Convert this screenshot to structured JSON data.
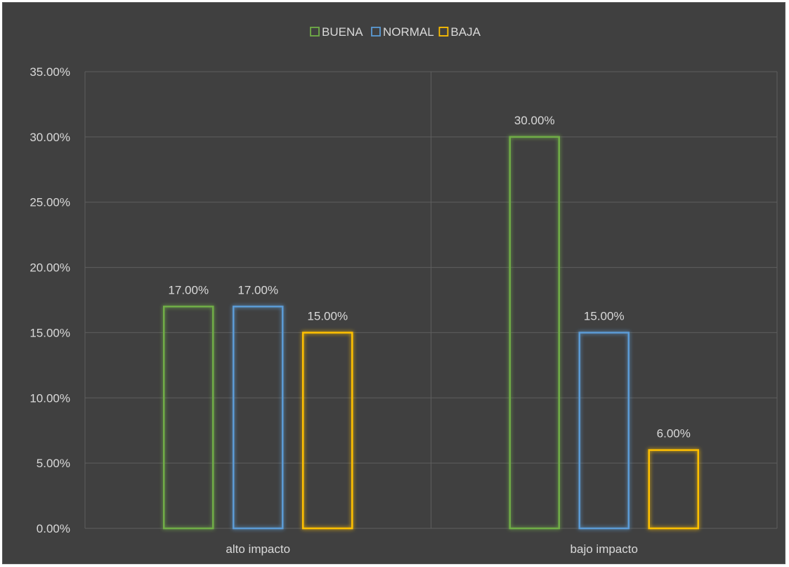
{
  "chart_data": {
    "type": "bar",
    "title": "",
    "xlabel": "",
    "ylabel": "",
    "categories": [
      "alto impacto",
      "bajo impacto"
    ],
    "series": [
      {
        "name": "BUENA",
        "color": "#70ad47",
        "values": [
          17.0,
          30.0
        ],
        "labels": [
          "17.00%",
          "30.00%"
        ]
      },
      {
        "name": "NORMAL",
        "color": "#5b9bd5",
        "values": [
          17.0,
          15.0
        ],
        "labels": [
          "17.00%",
          "15.00%"
        ]
      },
      {
        "name": "BAJA",
        "color": "#ffc000",
        "values": [
          15.0,
          6.0
        ],
        "labels": [
          "15.00%",
          "6.00%"
        ]
      }
    ],
    "ylim": [
      0,
      35
    ],
    "yticks": [
      0,
      5,
      10,
      15,
      20,
      25,
      30,
      35
    ],
    "ytick_labels": [
      "0.00%",
      "5.00%",
      "10.00%",
      "15.00%",
      "20.00%",
      "25.00%",
      "30.00%",
      "35.00%"
    ],
    "grid": true,
    "legend_position": "top",
    "bar_style": "outline-glow",
    "background": "#404040"
  }
}
